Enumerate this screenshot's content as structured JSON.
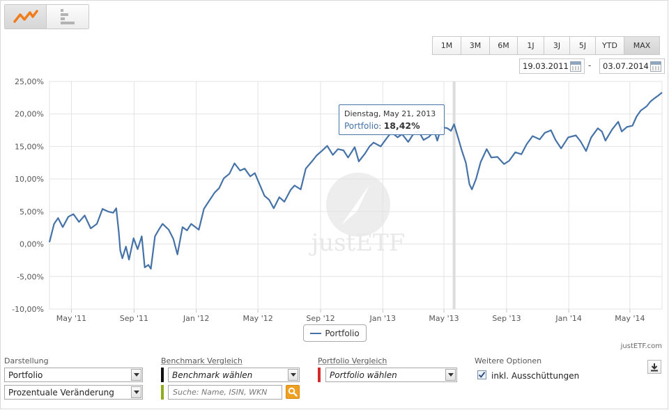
{
  "view_toggle": {
    "line_icon": "line-chart-icon",
    "table_icon": "bar-list-icon",
    "active": "line"
  },
  "range_buttons": [
    "1M",
    "3M",
    "6M",
    "1J",
    "3J",
    "5J",
    "YTD",
    "MAX"
  ],
  "range_active": "MAX",
  "date_from": "19.03.2011",
  "date_separator": "-",
  "date_to": "03.07.2014",
  "tooltip": {
    "date": "Dienstag, May 21, 2013",
    "series": "Portfolio",
    "value": "18,42%"
  },
  "legend": {
    "label": "Portfolio"
  },
  "watermark": "justETF",
  "credit": "justETF.com",
  "controls": {
    "darstellung": {
      "label": "Darstellung",
      "select1": "Portfolio",
      "select2": "Prozentuale Veränderung"
    },
    "benchmark": {
      "label": "Benchmark Vergleich",
      "select": "Benchmark wählen",
      "search_placeholder": "Suche: Name, ISIN, WKN",
      "bar_color": "#111111",
      "search_bar_color": "#8fac1e"
    },
    "portfolio_vergleich": {
      "label": "Portfolio Vergleich",
      "select": "Portfolio wählen",
      "bar_color": "#d42a2a"
    },
    "weitere": {
      "label": "Weitere Optionen",
      "checkbox_label": "inkl. Ausschüttungen",
      "checked": true
    }
  },
  "colors": {
    "series": "#4572a7",
    "grid": "#e0e0e0",
    "search_button": "#f0a020"
  },
  "chart_data": {
    "type": "line",
    "title": "",
    "xlabel": "",
    "ylabel": "",
    "x_tick_labels": [
      "May '11",
      "Sep '11",
      "Jan '12",
      "May '12",
      "Sep '12",
      "Jan '13",
      "May '13",
      "Sep '13",
      "Jan '14",
      "May '14"
    ],
    "y_tick_labels": [
      "25,00%",
      "20,00%",
      "15,00%",
      "10,00%",
      "5,00%",
      "0,00%",
      "-5,00%",
      "-10,00%"
    ],
    "ylim": [
      -10,
      25
    ],
    "xlim": [
      "2011-03-19",
      "2014-07-03"
    ],
    "grid": true,
    "series": [
      {
        "name": "Portfolio",
        "color": "#4572a7",
        "points": [
          [
            "2011-03-19",
            0.3
          ],
          [
            "2011-03-28",
            3.1
          ],
          [
            "2011-04-05",
            4.0
          ],
          [
            "2011-04-14",
            2.6
          ],
          [
            "2011-04-25",
            4.2
          ],
          [
            "2011-05-05",
            4.6
          ],
          [
            "2011-05-16",
            3.4
          ],
          [
            "2011-05-27",
            4.4
          ],
          [
            "2011-06-08",
            2.4
          ],
          [
            "2011-06-20",
            3.1
          ],
          [
            "2011-07-01",
            5.4
          ],
          [
            "2011-07-12",
            5.0
          ],
          [
            "2011-07-22",
            4.8
          ],
          [
            "2011-07-28",
            5.5
          ],
          [
            "2011-08-02",
            1.8
          ],
          [
            "2011-08-05",
            -1.0
          ],
          [
            "2011-08-09",
            -2.2
          ],
          [
            "2011-08-16",
            -0.4
          ],
          [
            "2011-08-22",
            -2.4
          ],
          [
            "2011-08-31",
            0.9
          ],
          [
            "2011-09-08",
            -0.8
          ],
          [
            "2011-09-16",
            1.2
          ],
          [
            "2011-09-22",
            -3.6
          ],
          [
            "2011-09-29",
            -3.2
          ],
          [
            "2011-10-04",
            -3.8
          ],
          [
            "2011-10-12",
            1.2
          ],
          [
            "2011-10-21",
            2.4
          ],
          [
            "2011-10-27",
            3.1
          ],
          [
            "2011-11-08",
            2.2
          ],
          [
            "2011-11-17",
            0.8
          ],
          [
            "2011-11-25",
            -1.6
          ],
          [
            "2011-12-05",
            2.6
          ],
          [
            "2011-12-14",
            2.1
          ],
          [
            "2011-12-22",
            3.1
          ],
          [
            "2012-01-06",
            2.2
          ],
          [
            "2012-01-16",
            5.4
          ],
          [
            "2012-01-26",
            6.6
          ],
          [
            "2012-02-06",
            7.9
          ],
          [
            "2012-02-15",
            8.6
          ],
          [
            "2012-02-24",
            10.1
          ],
          [
            "2012-03-06",
            10.8
          ],
          [
            "2012-03-16",
            12.4
          ],
          [
            "2012-03-27",
            11.3
          ],
          [
            "2012-04-05",
            11.6
          ],
          [
            "2012-04-16",
            10.4
          ],
          [
            "2012-04-25",
            10.9
          ],
          [
            "2012-05-03",
            9.4
          ],
          [
            "2012-05-14",
            7.4
          ],
          [
            "2012-05-23",
            6.8
          ],
          [
            "2012-06-01",
            5.5
          ],
          [
            "2012-06-12",
            7.2
          ],
          [
            "2012-06-22",
            6.5
          ],
          [
            "2012-07-04",
            8.3
          ],
          [
            "2012-07-12",
            9.0
          ],
          [
            "2012-07-24",
            8.4
          ],
          [
            "2012-08-03",
            11.6
          ],
          [
            "2012-08-15",
            12.7
          ],
          [
            "2012-08-24",
            13.6
          ],
          [
            "2012-09-06",
            14.5
          ],
          [
            "2012-09-14",
            15.1
          ],
          [
            "2012-09-25",
            13.7
          ],
          [
            "2012-10-05",
            14.6
          ],
          [
            "2012-10-16",
            14.4
          ],
          [
            "2012-10-25",
            13.3
          ],
          [
            "2012-11-07",
            14.9
          ],
          [
            "2012-11-15",
            12.7
          ],
          [
            "2012-11-27",
            13.9
          ],
          [
            "2012-12-06",
            15.0
          ],
          [
            "2012-12-14",
            15.6
          ],
          [
            "2012-12-28",
            15.0
          ],
          [
            "2013-01-08",
            16.2
          ],
          [
            "2013-01-18",
            17.2
          ],
          [
            "2013-01-30",
            16.4
          ],
          [
            "2013-02-08",
            16.9
          ],
          [
            "2013-02-20",
            15.7
          ],
          [
            "2013-03-01",
            16.8
          ],
          [
            "2013-03-12",
            17.4
          ],
          [
            "2013-03-22",
            16.0
          ],
          [
            "2013-04-02",
            16.5
          ],
          [
            "2013-04-12",
            17.4
          ],
          [
            "2013-04-18",
            15.9
          ],
          [
            "2013-04-26",
            18.0
          ],
          [
            "2013-05-08",
            17.8
          ],
          [
            "2013-05-15",
            17.4
          ],
          [
            "2013-05-21",
            18.42
          ],
          [
            "2013-05-29",
            16.3
          ],
          [
            "2013-06-05",
            14.4
          ],
          [
            "2013-06-13",
            12.5
          ],
          [
            "2013-06-20",
            9.2
          ],
          [
            "2013-06-25",
            8.4
          ],
          [
            "2013-07-03",
            10.0
          ],
          [
            "2013-07-12",
            12.6
          ],
          [
            "2013-07-24",
            14.6
          ],
          [
            "2013-08-02",
            13.3
          ],
          [
            "2013-08-14",
            13.4
          ],
          [
            "2013-08-27",
            12.3
          ],
          [
            "2013-09-06",
            12.8
          ],
          [
            "2013-09-18",
            14.1
          ],
          [
            "2013-09-30",
            13.8
          ],
          [
            "2013-10-10",
            15.3
          ],
          [
            "2013-10-22",
            16.6
          ],
          [
            "2013-11-05",
            16.1
          ],
          [
            "2013-11-15",
            17.1
          ],
          [
            "2013-11-27",
            17.5
          ],
          [
            "2013-12-06",
            16.0
          ],
          [
            "2013-12-17",
            14.7
          ],
          [
            "2013-12-31",
            16.4
          ],
          [
            "2014-01-15",
            16.7
          ],
          [
            "2014-01-24",
            15.8
          ],
          [
            "2014-02-04",
            14.3
          ],
          [
            "2014-02-14",
            16.4
          ],
          [
            "2014-02-27",
            17.8
          ],
          [
            "2014-03-07",
            17.3
          ],
          [
            "2014-03-14",
            15.9
          ],
          [
            "2014-03-27",
            17.6
          ],
          [
            "2014-04-08",
            18.8
          ],
          [
            "2014-04-15",
            17.3
          ],
          [
            "2014-04-25",
            18.0
          ],
          [
            "2014-05-06",
            18.2
          ],
          [
            "2014-05-14",
            19.6
          ],
          [
            "2014-05-22",
            20.5
          ],
          [
            "2014-06-03",
            21.2
          ],
          [
            "2014-06-10",
            21.9
          ],
          [
            "2014-06-18",
            22.4
          ],
          [
            "2014-06-25",
            22.8
          ],
          [
            "2014-07-03",
            23.3
          ]
        ]
      }
    ],
    "highlight_x": "2013-05-21"
  }
}
